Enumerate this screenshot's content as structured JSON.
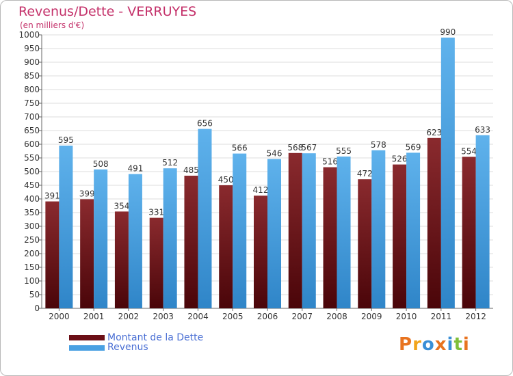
{
  "header": {
    "title": "Revenus/Dette - VERRUYES",
    "subtitle": "(en milliers d'€)"
  },
  "legend": {
    "items": [
      {
        "label": "Montant de la Dette",
        "color": "#6b0f16"
      },
      {
        "label": "Revenus",
        "color": "#4aa0e2"
      }
    ]
  },
  "logo": {
    "text": "Proxiti",
    "colors": [
      "#e8731f",
      "#f2a51c",
      "#3a8fd6",
      "#e8731f",
      "#3a8fd6",
      "#7fbf3a",
      "#e8731f"
    ]
  },
  "chart_data": {
    "type": "bar",
    "categories": [
      "2000",
      "2001",
      "2002",
      "2003",
      "2004",
      "2005",
      "2006",
      "2007",
      "2008",
      "2009",
      "2010",
      "2011",
      "2012"
    ],
    "series": [
      {
        "name": "Montant de la Dette",
        "values": [
          391,
          399,
          354,
          331,
          485,
          450,
          412,
          568,
          516,
          472,
          526,
          623,
          554
        ],
        "color": "#6b0f16"
      },
      {
        "name": "Revenus",
        "values": [
          595,
          508,
          491,
          512,
          656,
          566,
          546,
          567,
          555,
          578,
          569,
          990,
          633
        ],
        "color": "#4aa0e2"
      }
    ],
    "title": "Revenus/Dette - VERRUYES",
    "subtitle": "(en milliers d'€)",
    "ylim": [
      0,
      1000
    ],
    "ytick_step": 50,
    "grid": true
  }
}
